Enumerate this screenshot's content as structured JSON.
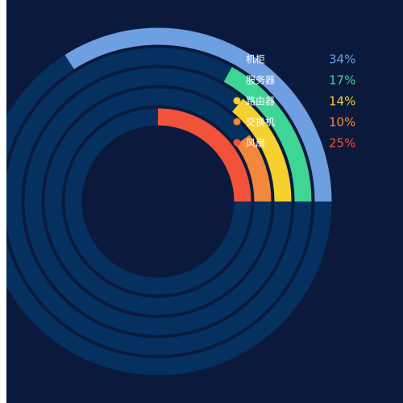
{
  "chart_data": {
    "type": "radial-bar",
    "title": "",
    "series": [
      {
        "name": "机柜",
        "value": 34,
        "label": "34%",
        "color": "#6e9fe0"
      },
      {
        "name": "服务器",
        "value": 17,
        "label": "17%",
        "color": "#3fd595"
      },
      {
        "name": "路由器",
        "value": 14,
        "label": "14%",
        "color": "#f5d130"
      },
      {
        "name": "交换机",
        "value": 10,
        "label": "10%",
        "color": "#f3873b"
      },
      {
        "name": "风扇",
        "value": 25,
        "label": "25%",
        "color": "#f2523b"
      }
    ],
    "track_color": "#06305f",
    "background_color": "#0b1a3c",
    "legend_position": "top-right",
    "arc_direction": "counter-clockwise from 3 o'clock"
  }
}
